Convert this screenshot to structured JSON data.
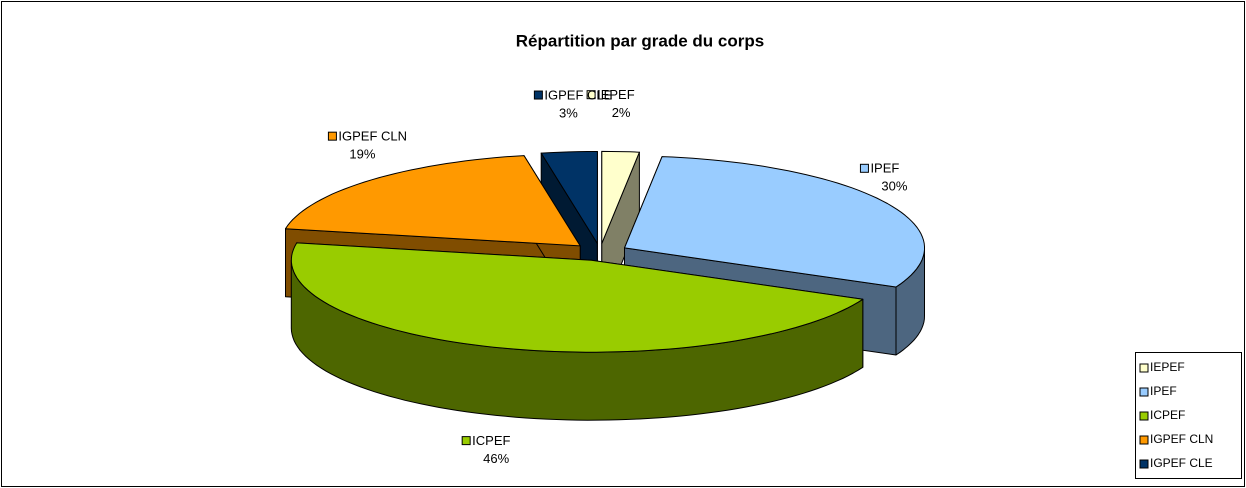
{
  "chart_data": {
    "type": "pie3d",
    "title": "Répartition par grade du corps",
    "categories": [
      "IEPEF",
      "IPEF",
      "ICPEF",
      "IGPEF CLN",
      "IGPEF CLE"
    ],
    "values": [
      2,
      30,
      46,
      19,
      3
    ],
    "value_labels": [
      "2%",
      "30%",
      "46%",
      "19%",
      "3%"
    ],
    "colors": [
      "#ffffcc",
      "#99ccff",
      "#99cc00",
      "#ff9900",
      "#003366"
    ],
    "legend": "right"
  }
}
